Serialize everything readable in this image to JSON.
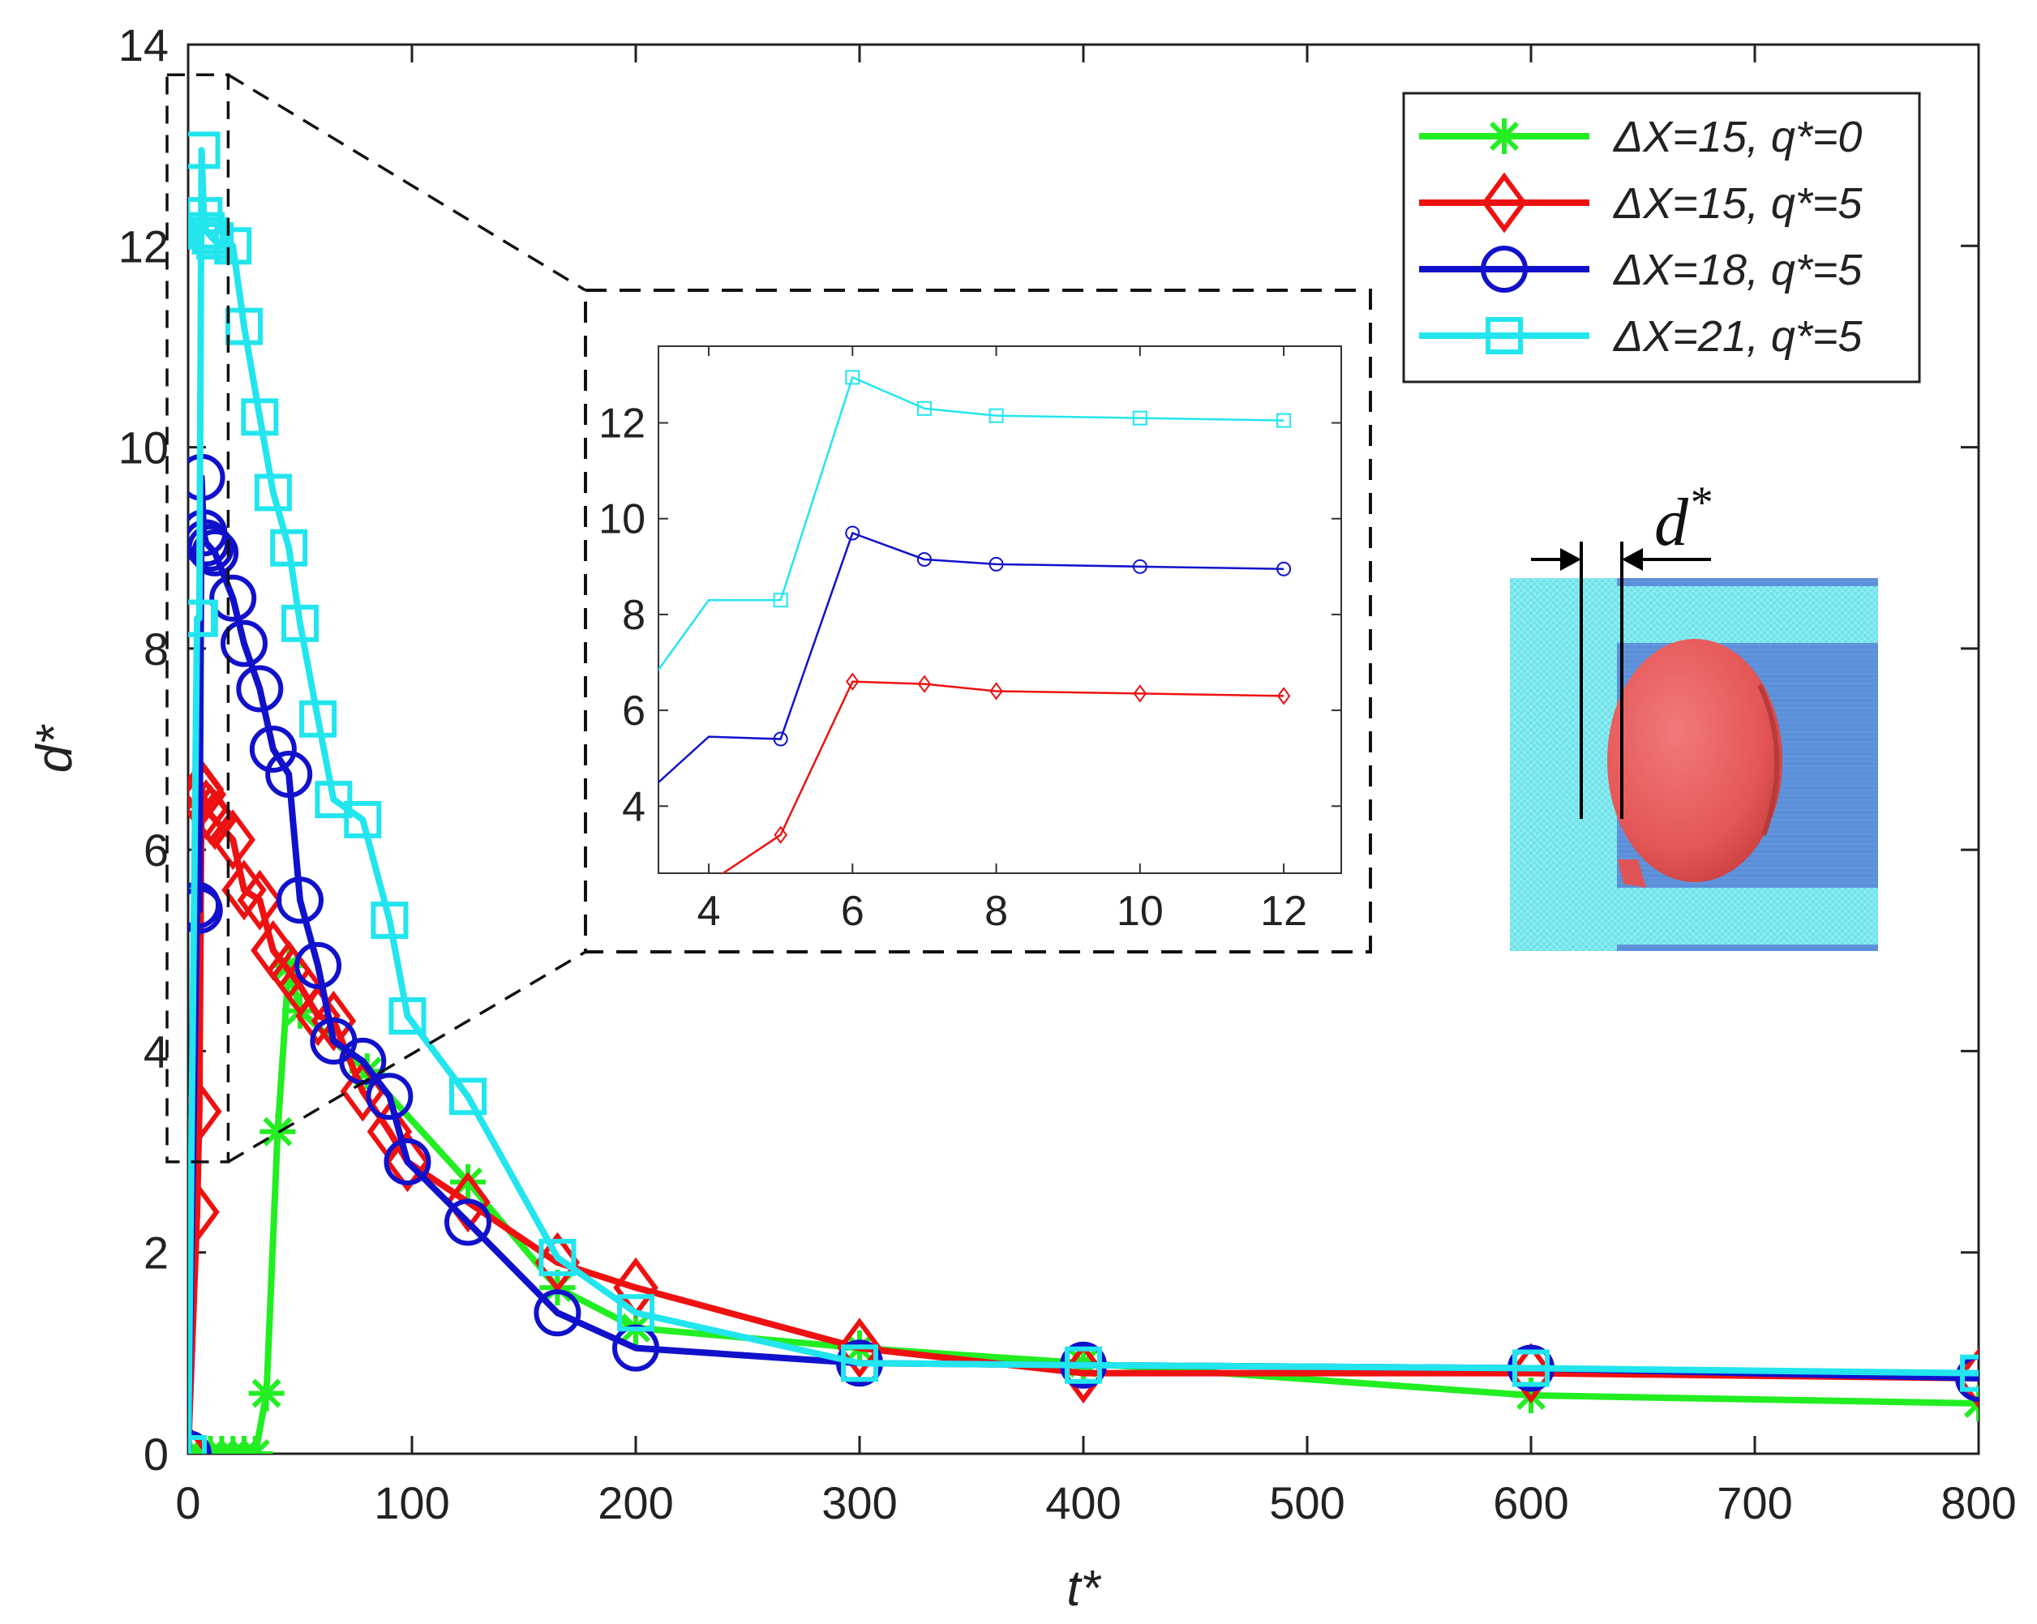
{
  "chart_data": {
    "type": "line",
    "xlabel": "t*",
    "ylabel": "d*",
    "xlim": [
      0,
      800
    ],
    "ylim": [
      0,
      14
    ],
    "xticks": [
      0,
      100,
      200,
      300,
      400,
      500,
      600,
      700,
      800
    ],
    "yticks": [
      0,
      2,
      4,
      6,
      8,
      10,
      12,
      14
    ],
    "grid": false,
    "legend_position": "top-right",
    "series": [
      {
        "name": "ΔX=15, q*=0",
        "color": "#22ee22",
        "marker": "asterisk",
        "x": [
          0,
          5,
          10,
          15,
          20,
          25,
          30,
          35,
          40,
          45,
          50,
          80,
          125,
          165,
          200,
          300,
          400,
          600,
          800
        ],
        "y": [
          0,
          0,
          0,
          0,
          0,
          0,
          0,
          0.6,
          3.2,
          4.85,
          4.4,
          3.8,
          2.7,
          1.65,
          1.25,
          1.05,
          0.9,
          0.58,
          0.5
        ]
      },
      {
        "name": "ΔX=15, q*=5",
        "color": "#ee1111",
        "marker": "diamond",
        "x": [
          0,
          4,
          5,
          6,
          7,
          8,
          10,
          12,
          20,
          25,
          32,
          38,
          45,
          50,
          58,
          65,
          78,
          90,
          98,
          125,
          165,
          200,
          300,
          400,
          600,
          800
        ],
        "y": [
          0,
          2.4,
          3.4,
          6.6,
          6.55,
          6.4,
          6.35,
          6.3,
          6.1,
          5.6,
          5.5,
          5.0,
          4.8,
          4.65,
          4.35,
          4.3,
          3.6,
          3.2,
          2.9,
          2.5,
          1.9,
          1.65,
          1.05,
          0.8,
          0.8,
          0.75
        ]
      },
      {
        "name": "ΔX=18, q*=5",
        "color": "#1111cc",
        "marker": "circle",
        "x": [
          0,
          4,
          5,
          6,
          7,
          8,
          10,
          12,
          20,
          25,
          32,
          38,
          45,
          50,
          58,
          65,
          78,
          90,
          98,
          125,
          165,
          200,
          300,
          400,
          600,
          800
        ],
        "y": [
          0,
          5.45,
          5.4,
          9.7,
          9.15,
          9.05,
          9.0,
          8.95,
          8.5,
          8.05,
          7.6,
          7.0,
          6.75,
          5.5,
          4.85,
          4.1,
          3.9,
          3.55,
          2.9,
          2.3,
          1.4,
          1.05,
          0.9,
          0.88,
          0.85,
          0.75
        ]
      },
      {
        "name": "ΔX=21, q*=5",
        "color": "#22e5ee",
        "marker": "square",
        "x": [
          0,
          4,
          5,
          6,
          7,
          8,
          10,
          12,
          20,
          25,
          32,
          38,
          45,
          50,
          58,
          65,
          78,
          90,
          98,
          125,
          165,
          200,
          300,
          400,
          600,
          800
        ],
        "y": [
          0,
          8.3,
          8.3,
          12.95,
          12.3,
          12.15,
          12.1,
          12.05,
          12.0,
          11.2,
          10.3,
          9.55,
          9.0,
          8.25,
          7.3,
          6.5,
          6.3,
          5.3,
          4.35,
          3.55,
          1.95,
          1.4,
          0.9,
          0.88,
          0.85,
          0.8
        ]
      }
    ],
    "inset": {
      "xlim": [
        3.3,
        12.8
      ],
      "ylim": [
        2.6,
        13.6
      ],
      "xticks": [
        4,
        6,
        8,
        10,
        12
      ],
      "yticks": [
        4,
        6,
        8,
        10,
        12
      ],
      "zoom_region": {
        "x": [
          0,
          15
        ],
        "y": [
          2.9,
          13.7
        ]
      }
    },
    "annotation": {
      "label": "d",
      "superscript": "*"
    }
  },
  "colors": {
    "particle_red": "#e85a5a",
    "substrate_blue": "#5b8fd9",
    "gap_cyan": "#6fe3ea"
  }
}
